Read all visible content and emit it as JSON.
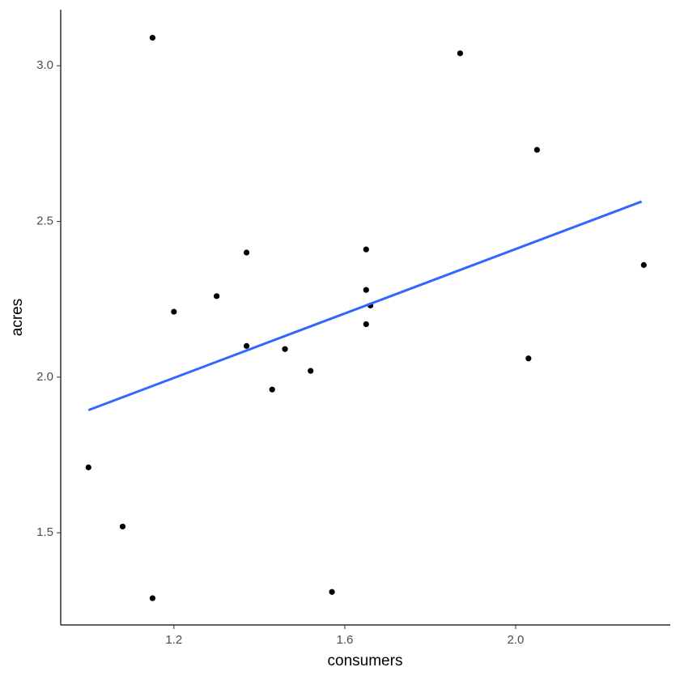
{
  "chart_data": {
    "type": "scatter",
    "x_label": "consumers",
    "y_label": "acres",
    "series": [
      {
        "color": "#000000",
        "x": [
          1.0,
          1.08,
          1.15,
          1.15,
          1.2,
          1.3,
          1.37,
          1.37,
          1.43,
          1.46,
          1.52,
          1.57,
          1.65,
          1.65,
          1.65,
          1.66,
          1.87,
          2.03,
          2.05,
          2.3
        ],
        "values": [
          1.71,
          1.52,
          1.29,
          3.09,
          2.21,
          2.26,
          2.4,
          2.1,
          1.96,
          2.09,
          2.02,
          1.31,
          2.41,
          2.28,
          2.17,
          2.23,
          3.04,
          2.06,
          2.73,
          2.36
        ]
      }
    ],
    "fit_line": {
      "color": "#3366ff",
      "x": [
        1.0,
        2.295
      ],
      "values": [
        1.894,
        2.564
      ]
    },
    "xlim": [
      0.935,
      2.362
    ],
    "ylim": [
      1.204,
      3.18
    ],
    "xticks": [
      1.2,
      1.6,
      {
        "value": 2.0,
        "label": "2.0"
      }
    ],
    "yticks": [
      {
        "value": 1.5,
        "label": "1.5"
      },
      {
        "value": 2.0,
        "label": "2.0"
      },
      2.5,
      {
        "value": 3.0,
        "label": "3.0"
      }
    ],
    "grid": false
  }
}
